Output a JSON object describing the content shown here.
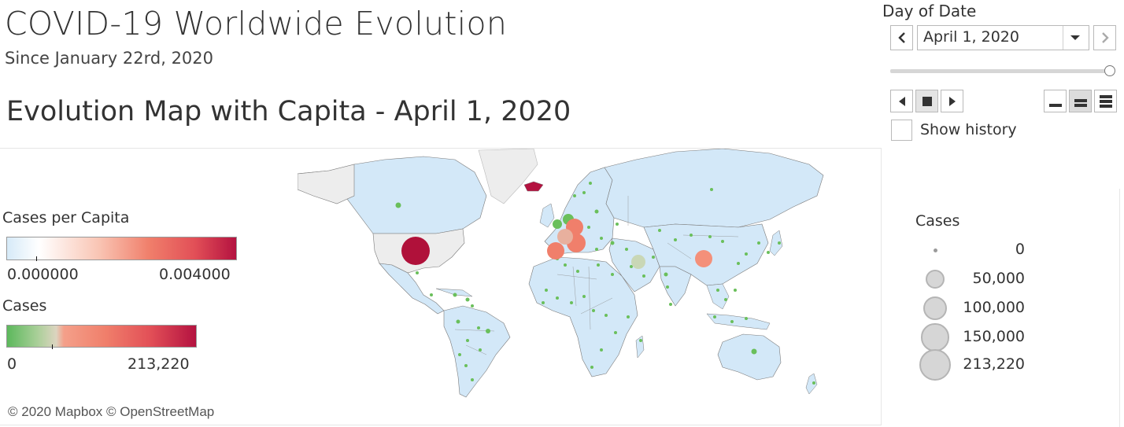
{
  "header": {
    "title": "COVID-19 Worldwide Evolution",
    "subtitle": "Since January 22rd, 2020",
    "viz_title": "Evolution Map with Capita - April 1, 2020"
  },
  "map": {
    "copyright": "© 2020 Mapbox © OpenStreetMap",
    "colors": {
      "land": "#d3e8f8",
      "land_grey": "#ededed",
      "border": "#7a7a7a",
      "point_low": "#6abf5b",
      "point_high": "#f07f6b",
      "point_max": "#b0113a"
    }
  },
  "legends": {
    "capita": {
      "title": "Cases per Capita",
      "min_label": "0.000000",
      "max_label": "0.004000",
      "gradient": [
        "#d6eaf8",
        "#ffffff",
        "#f7a08a",
        "#e9595a",
        "#b41240"
      ]
    },
    "cases_color": {
      "title": "Cases",
      "min_label": "0",
      "max_label": "213,220",
      "gradient": [
        "#5cb85c",
        "#c9d7b6",
        "#f4a08a",
        "#e9595a",
        "#b41240"
      ]
    },
    "cases_size": {
      "title": "Cases",
      "items": [
        {
          "label": "0",
          "value": 0
        },
        {
          "label": "50,000",
          "value": 50000
        },
        {
          "label": "100,000",
          "value": 100000
        },
        {
          "label": "150,000",
          "value": 150000
        },
        {
          "label": "213,220",
          "value": 213220
        }
      ]
    }
  },
  "filter": {
    "label": "Day of Date",
    "selected_value": "April 1, 2020",
    "slider_fraction": 1.0,
    "prev_icon": "chevron-left-icon",
    "next_icon": "chevron-right-icon",
    "dropdown_icon": "caret-down-icon",
    "playback": [
      "play-back-icon",
      "stop-icon",
      "play-forward-icon"
    ],
    "speed": [
      "speed-slow-icon",
      "speed-medium-icon",
      "speed-fast-icon"
    ],
    "history_label": "Show history",
    "history_checked": false
  }
}
